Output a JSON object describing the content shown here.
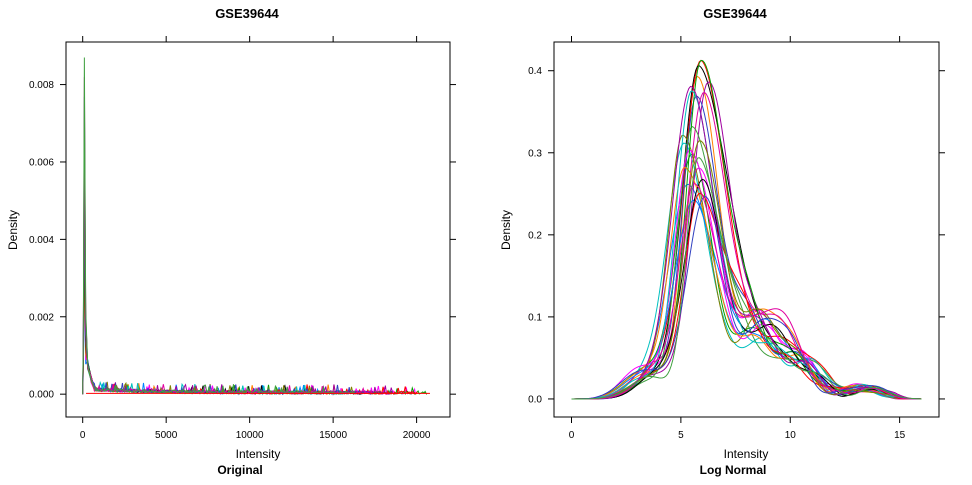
{
  "palette": [
    "#0080ff",
    "#ff00ff",
    "#ff8000",
    "#00a000",
    "#ff0000",
    "#000000",
    "#00c0c0",
    "#a000a0",
    "#808000",
    "#3040c0",
    "#e000a0",
    "#40a040"
  ],
  "chart_data": [
    {
      "type": "line",
      "title": "GSE39644",
      "subtitle": "Original",
      "xlabel": "Intensity",
      "ylabel": "Density",
      "xlim": [
        -1000,
        22000
      ],
      "ylim": [
        -0.00059,
        0.0091
      ],
      "x_ticks": [
        0,
        5000,
        10000,
        15000,
        20000
      ],
      "y_ticks": [
        0.0,
        0.002,
        0.004,
        0.006,
        0.008
      ],
      "x_tick_labels": [
        "0",
        "5000",
        "10000",
        "15000",
        "20000"
      ],
      "y_tick_labels": [
        "0.000",
        "0.002",
        "0.004",
        "0.006",
        "0.008"
      ],
      "grid": false,
      "legend": "none",
      "series_count": 12,
      "peak_x": 100,
      "peak_density_range": [
        0.0031,
        0.0087
      ],
      "tail_level": 0.0001,
      "tail_end_x_range": [
        15500,
        20800
      ]
    },
    {
      "type": "line",
      "title": "GSE39644",
      "subtitle": "Log Normal",
      "xlabel": "Intensity",
      "ylabel": "Density",
      "xlim": [
        -0.8,
        16.8
      ],
      "ylim": [
        -0.022,
        0.435
      ],
      "x_ticks": [
        0,
        5,
        10,
        15
      ],
      "y_ticks": [
        0.0,
        0.1,
        0.2,
        0.3,
        0.4
      ],
      "x_tick_labels": [
        "0",
        "5",
        "10",
        "15"
      ],
      "y_tick_labels": [
        "0.0",
        "0.1",
        "0.2",
        "0.3",
        "0.4"
      ],
      "grid": false,
      "legend": "none",
      "series_count": 24,
      "x_range": [
        0,
        16
      ],
      "peak_x_range": [
        5.1,
        6.3
      ],
      "peak_density_range": [
        0.24,
        0.415
      ]
    }
  ]
}
